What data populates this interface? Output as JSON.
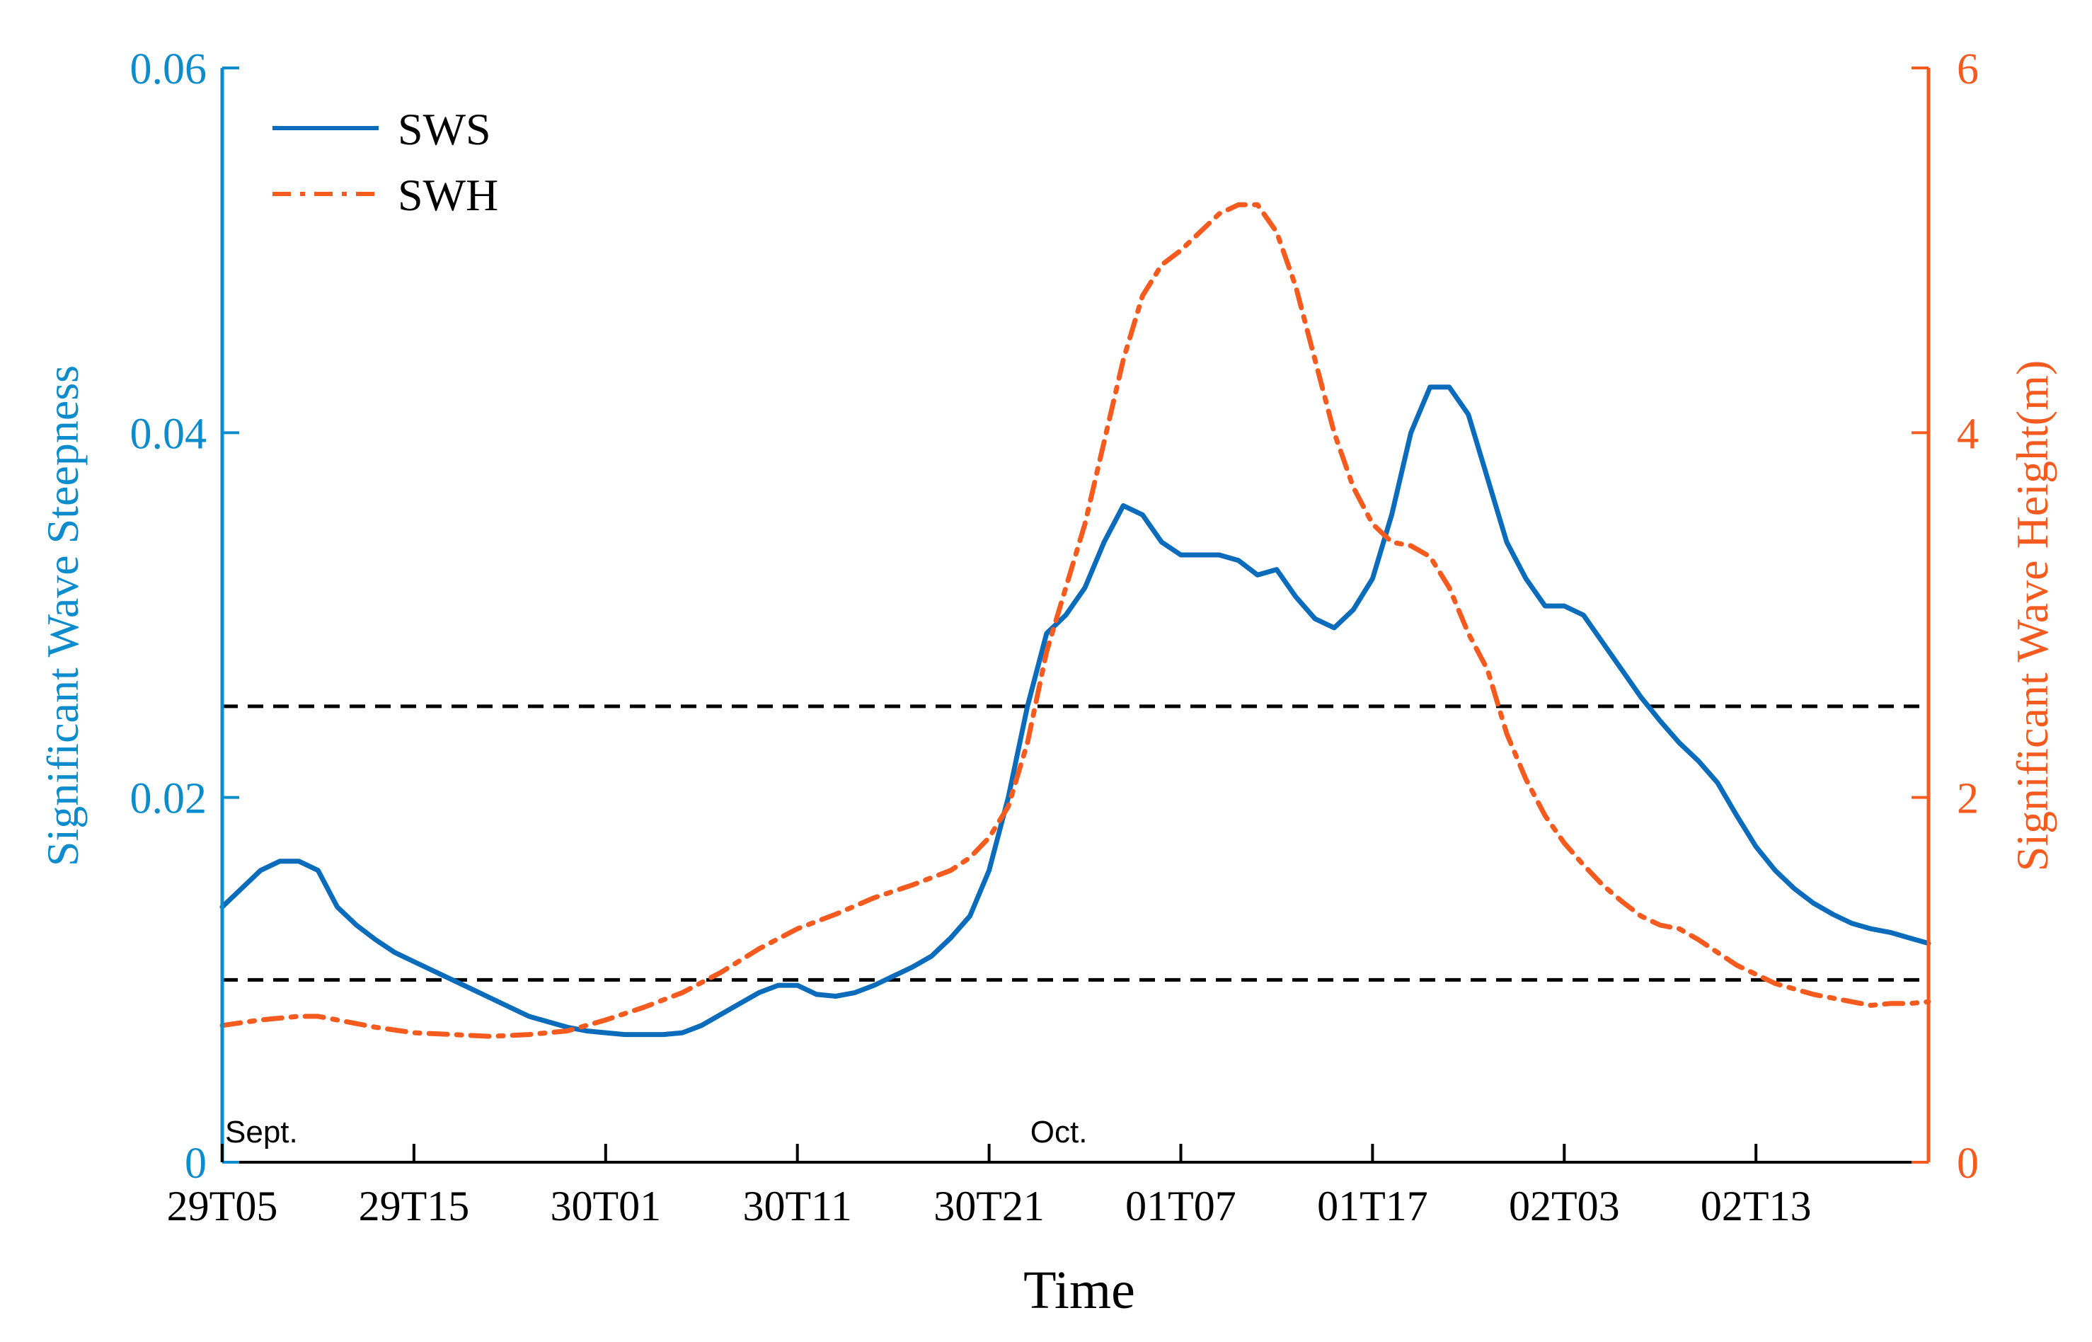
{
  "chart_data": {
    "type": "line",
    "xlabel": "Time",
    "x_range": [
      0,
      89
    ],
    "x_ticks": [
      {
        "x": 0,
        "label": "29T05"
      },
      {
        "x": 10,
        "label": "29T15"
      },
      {
        "x": 20,
        "label": "30T01"
      },
      {
        "x": 30,
        "label": "30T11"
      },
      {
        "x": 40,
        "label": "30T21"
      },
      {
        "x": 50,
        "label": "01T07"
      },
      {
        "x": 60,
        "label": "01T17"
      },
      {
        "x": 70,
        "label": "02T03"
      },
      {
        "x": 80,
        "label": "02T13"
      }
    ],
    "month_annotations": [
      {
        "x": 0,
        "label": "Sept."
      },
      {
        "x": 42,
        "label": "Oct."
      }
    ],
    "y_left": {
      "label": "Significant Wave Steepness",
      "range": [
        0,
        0.06
      ],
      "ticks": [
        0,
        0.02,
        0.04,
        0.06
      ],
      "tick_labels": [
        "0",
        "0.02",
        "0.04",
        "0.06"
      ],
      "color": "#0c8ccc"
    },
    "y_right": {
      "label": "Significant Wave Height(m)",
      "range": [
        0,
        6
      ],
      "ticks": [
        0,
        2,
        4,
        6
      ],
      "tick_labels": [
        "0",
        "2",
        "4",
        "6"
      ],
      "color": "#f55a1f"
    },
    "reference_lines": [
      {
        "axis": "left",
        "value": 0.025,
        "style": "dashed",
        "color": "#000000"
      },
      {
        "axis": "left",
        "value": 0.01,
        "style": "dashed",
        "color": "#000000"
      }
    ],
    "series": [
      {
        "name": "SWS",
        "axis": "left",
        "style": "solid",
        "color": "#0c6cbc",
        "points": [
          [
            0,
            0.014
          ],
          [
            1,
            0.015
          ],
          [
            2,
            0.016
          ],
          [
            3,
            0.0165
          ],
          [
            4,
            0.0165
          ],
          [
            5,
            0.016
          ],
          [
            6,
            0.014
          ],
          [
            7,
            0.013
          ],
          [
            8,
            0.0122
          ],
          [
            9,
            0.0115
          ],
          [
            10,
            0.011
          ],
          [
            11,
            0.0105
          ],
          [
            12,
            0.01
          ],
          [
            13,
            0.0095
          ],
          [
            14,
            0.009
          ],
          [
            15,
            0.0085
          ],
          [
            16,
            0.008
          ],
          [
            17,
            0.0077
          ],
          [
            18,
            0.0074
          ],
          [
            19,
            0.0072
          ],
          [
            20,
            0.0071
          ],
          [
            21,
            0.007
          ],
          [
            22,
            0.007
          ],
          [
            23,
            0.007
          ],
          [
            24,
            0.0071
          ],
          [
            25,
            0.0075
          ],
          [
            26,
            0.0081
          ],
          [
            27,
            0.0087
          ],
          [
            28,
            0.0093
          ],
          [
            29,
            0.0097
          ],
          [
            30,
            0.0097
          ],
          [
            31,
            0.0092
          ],
          [
            32,
            0.0091
          ],
          [
            33,
            0.0093
          ],
          [
            34,
            0.0097
          ],
          [
            35,
            0.0102
          ],
          [
            36,
            0.0107
          ],
          [
            37,
            0.0113
          ],
          [
            38,
            0.0123
          ],
          [
            39,
            0.0135
          ],
          [
            40,
            0.016
          ],
          [
            41,
            0.02
          ],
          [
            42,
            0.025
          ],
          [
            43,
            0.029
          ],
          [
            44,
            0.03
          ],
          [
            45,
            0.0315
          ],
          [
            46,
            0.034
          ],
          [
            47,
            0.036
          ],
          [
            48,
            0.0355
          ],
          [
            49,
            0.034
          ],
          [
            50,
            0.0333
          ],
          [
            51,
            0.0333
          ],
          [
            52,
            0.0333
          ],
          [
            53,
            0.033
          ],
          [
            54,
            0.0322
          ],
          [
            55,
            0.0325
          ],
          [
            56,
            0.031
          ],
          [
            57,
            0.0298
          ],
          [
            58,
            0.0293
          ],
          [
            59,
            0.0303
          ],
          [
            60,
            0.032
          ],
          [
            61,
            0.0355
          ],
          [
            62,
            0.04
          ],
          [
            63,
            0.0425
          ],
          [
            64,
            0.0425
          ],
          [
            65,
            0.041
          ],
          [
            66,
            0.0375
          ],
          [
            67,
            0.034
          ],
          [
            68,
            0.032
          ],
          [
            69,
            0.0305
          ],
          [
            70,
            0.0305
          ],
          [
            71,
            0.03
          ],
          [
            72,
            0.0285
          ],
          [
            73,
            0.027
          ],
          [
            74,
            0.0255
          ],
          [
            75,
            0.0242
          ],
          [
            76,
            0.023
          ],
          [
            77,
            0.022
          ],
          [
            78,
            0.0208
          ],
          [
            79,
            0.019
          ],
          [
            80,
            0.0173
          ],
          [
            81,
            0.016
          ],
          [
            82,
            0.015
          ],
          [
            83,
            0.0142
          ],
          [
            84,
            0.0136
          ],
          [
            85,
            0.0131
          ],
          [
            86,
            0.0128
          ],
          [
            87,
            0.0126
          ],
          [
            88,
            0.0123
          ],
          [
            89,
            0.012
          ]
        ]
      },
      {
        "name": "SWH",
        "axis": "right",
        "style": "dashdot",
        "color": "#f55a1f",
        "points": [
          [
            0,
            0.75
          ],
          [
            2,
            0.78
          ],
          [
            4,
            0.8
          ],
          [
            5,
            0.8
          ],
          [
            6,
            0.78
          ],
          [
            8,
            0.74
          ],
          [
            10,
            0.71
          ],
          [
            12,
            0.7
          ],
          [
            14,
            0.69
          ],
          [
            16,
            0.7
          ],
          [
            18,
            0.72
          ],
          [
            20,
            0.78
          ],
          [
            22,
            0.85
          ],
          [
            24,
            0.93
          ],
          [
            26,
            1.04
          ],
          [
            28,
            1.17
          ],
          [
            30,
            1.28
          ],
          [
            32,
            1.36
          ],
          [
            34,
            1.45
          ],
          [
            36,
            1.52
          ],
          [
            38,
            1.6
          ],
          [
            39,
            1.67
          ],
          [
            40,
            1.78
          ],
          [
            41,
            1.95
          ],
          [
            42,
            2.3
          ],
          [
            43,
            2.8
          ],
          [
            44,
            3.15
          ],
          [
            45,
            3.5
          ],
          [
            46,
            3.95
          ],
          [
            47,
            4.4
          ],
          [
            48,
            4.75
          ],
          [
            49,
            4.92
          ],
          [
            50,
            5.0
          ],
          [
            51,
            5.1
          ],
          [
            52,
            5.2
          ],
          [
            53,
            5.25
          ],
          [
            54,
            5.25
          ],
          [
            55,
            5.1
          ],
          [
            56,
            4.8
          ],
          [
            57,
            4.4
          ],
          [
            58,
            4.0
          ],
          [
            59,
            3.7
          ],
          [
            60,
            3.5
          ],
          [
            61,
            3.4
          ],
          [
            62,
            3.38
          ],
          [
            63,
            3.32
          ],
          [
            64,
            3.15
          ],
          [
            65,
            2.9
          ],
          [
            66,
            2.7
          ],
          [
            67,
            2.35
          ],
          [
            68,
            2.1
          ],
          [
            69,
            1.9
          ],
          [
            70,
            1.75
          ],
          [
            71,
            1.63
          ],
          [
            72,
            1.52
          ],
          [
            73,
            1.43
          ],
          [
            74,
            1.35
          ],
          [
            75,
            1.3
          ],
          [
            76,
            1.28
          ],
          [
            77,
            1.22
          ],
          [
            78,
            1.15
          ],
          [
            79,
            1.08
          ],
          [
            80,
            1.03
          ],
          [
            81,
            0.98
          ],
          [
            82,
            0.95
          ],
          [
            83,
            0.92
          ],
          [
            84,
            0.9
          ],
          [
            85,
            0.88
          ],
          [
            86,
            0.86
          ],
          [
            87,
            0.87
          ],
          [
            88,
            0.87
          ],
          [
            89,
            0.88
          ]
        ]
      }
    ],
    "legend": {
      "position": "top-left",
      "entries": [
        {
          "name": "SWS",
          "style": "solid",
          "color": "#0c6cbc"
        },
        {
          "name": "SWH",
          "style": "dashdot",
          "color": "#f55a1f"
        }
      ]
    }
  }
}
